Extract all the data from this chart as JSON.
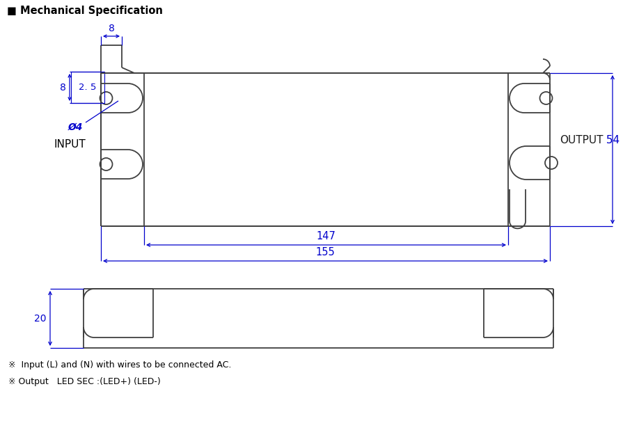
{
  "title": "■ Mechanical Specification",
  "blue": "#0000CC",
  "black": "#000000",
  "gray": "#404040",
  "bg": "#ffffff",
  "dim_8_top": "8",
  "dim_8_left": "8",
  "dim_2p5": "2. 5",
  "dim_phi4": "Ø4",
  "dim_147": "147",
  "dim_155": "155",
  "dim_20": "20",
  "label_input": "INPUT",
  "label_output_black": "OUTPUT",
  "label_output_blue": " 54",
  "notes": [
    "※  Input (L) and (N) with wires to be connected AC.",
    "※ Output   LED SEC :(LED+) (LED-)"
  ],
  "figw": 9.18,
  "figh": 6.05,
  "dpi": 100
}
